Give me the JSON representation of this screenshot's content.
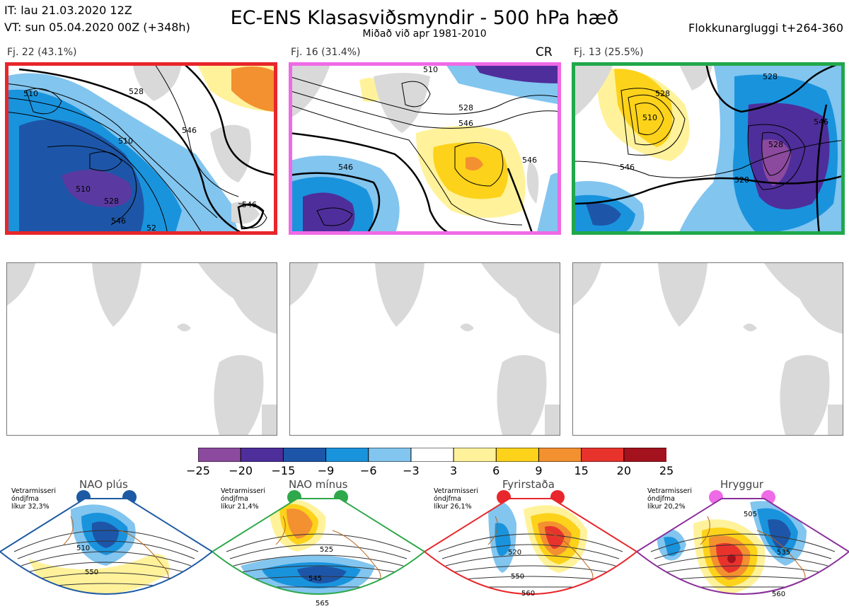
{
  "header": {
    "it_line": "IT: lau 21.03.2020 12Z",
    "vt_line": "VT: sun 05.04.2020 00Z  (+348h)",
    "title": "EC-ENS Klasasviðsmyndir - 500 hPa hæð",
    "subtitle": "Miðað við apr 1981-2010",
    "window": "Flokkunargluggi t+264-360"
  },
  "clusters": [
    {
      "label": "Fj. 22 (43.1%)",
      "frame_color": "#e8262b",
      "contours": [
        "510",
        "510",
        "528",
        "546",
        "510",
        "528",
        "546",
        "546",
        "52"
      ]
    },
    {
      "label": "Fj. 16 (31.4%)",
      "frame_color": "#ef6ae6",
      "marker": "CR",
      "contours": [
        "510",
        "528",
        "546",
        "546",
        "546"
      ]
    },
    {
      "label": "Fj. 13 (25.5%)",
      "frame_color": "#20a84a",
      "contours": [
        "528",
        "510",
        "528",
        "546",
        "528",
        "546",
        "528"
      ]
    }
  ],
  "colorbar": {
    "colors": [
      "#8c4a9e",
      "#4e2e9a",
      "#1d56a8",
      "#1a93dd",
      "#82c5ef",
      "#ffffff",
      "#fff29b",
      "#fdd21a",
      "#f39030",
      "#e8332c",
      "#a3121d"
    ],
    "ticks": [
      "−25",
      "−20",
      "−15",
      "−9",
      "−6",
      "−3",
      "3",
      "6",
      "9",
      "15",
      "20",
      "25"
    ]
  },
  "regimes": [
    {
      "name": "NAO plús",
      "note": [
        "Vetrarmisseri",
        "óndjfma",
        "líkur 32,3%"
      ],
      "color": "#1d5aa3",
      "contours": [
        "510",
        "550"
      ]
    },
    {
      "name": "NAO mínus",
      "note": [
        "Vetrarmisseri",
        "óndjfma",
        "líkur 21,4%"
      ],
      "color": "#2ea84a",
      "contours": [
        "525",
        "545",
        "565"
      ]
    },
    {
      "name": "Fyrirstaða",
      "note": [
        "Vetrarmisseri",
        "óndjfma",
        "líkur 26,1%"
      ],
      "color": "#e8262b",
      "contours": [
        "520",
        "550",
        "560"
      ]
    },
    {
      "name": "Hryggur",
      "note": [
        "Vetrarmisseri",
        "óndjfma",
        "líkur 20,2%"
      ],
      "color": "#8a2f9a",
      "contours": [
        "505",
        "535",
        "560"
      ]
    }
  ]
}
